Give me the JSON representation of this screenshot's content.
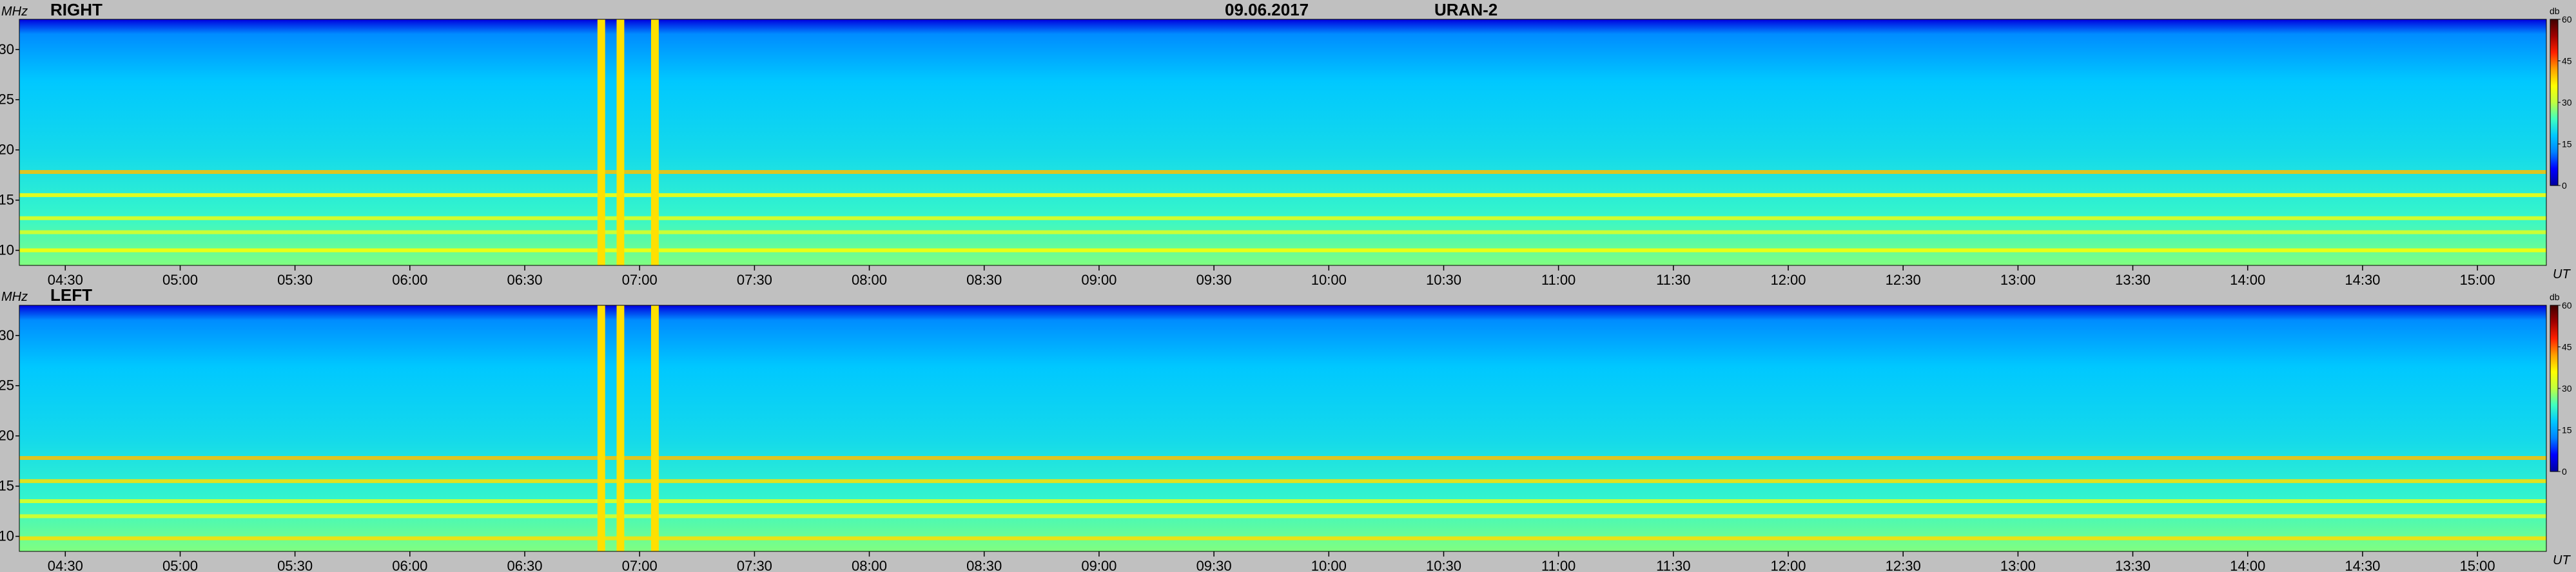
{
  "header": {
    "date": "09.06.2017",
    "instrument": "URAN-2"
  },
  "units": {
    "y": "MHz",
    "x": "UT",
    "colorbar": "db"
  },
  "colors": {
    "background": "#c0c0c0",
    "colormap": [
      "#0000a0",
      "#0000ff",
      "#0080ff",
      "#00c8ff",
      "#40ffc0",
      "#c0ff40",
      "#ffff00",
      "#ffa000",
      "#ff2000",
      "#a00000",
      "#400000"
    ]
  },
  "chart_data": {
    "type": "heatmap",
    "title": "09.06.2017 URAN-2",
    "time_range_ut": [
      "04:18",
      "15:18"
    ],
    "frequency_range_mhz": [
      8.5,
      33
    ],
    "x_ticks": [
      "04:30",
      "05:00",
      "05:30",
      "06:00",
      "06:30",
      "07:00",
      "07:30",
      "08:00",
      "08:30",
      "09:00",
      "09:30",
      "10:00",
      "10:30",
      "11:00",
      "11:30",
      "12:00",
      "12:30",
      "13:00",
      "13:30",
      "14:00",
      "14:30",
      "15:00"
    ],
    "y_ticks": [
      10,
      15,
      20,
      25,
      30
    ],
    "colorbar": {
      "min": 0,
      "max": 60,
      "ticks": [
        0,
        15,
        30,
        45,
        60
      ],
      "label": "db"
    },
    "panels": [
      {
        "name": "RIGHT",
        "background_level_db": 18,
        "interference_bursts_ut": [
          [
            "06:49",
            "06:51"
          ],
          [
            "06:54",
            "06:56"
          ],
          [
            "07:03",
            "07:05"
          ]
        ],
        "bright_bands_mhz": [
          {
            "freq": 17.8,
            "level_db": 40
          },
          {
            "freq": 15.5,
            "level_db": 36
          },
          {
            "freq": 13.2,
            "level_db": 34
          },
          {
            "freq": 11.8,
            "level_db": 33
          },
          {
            "freq": 10.0,
            "level_db": 36
          }
        ]
      },
      {
        "name": "LEFT",
        "background_level_db": 18,
        "interference_bursts_ut": [
          [
            "06:49",
            "06:51"
          ],
          [
            "06:54",
            "06:56"
          ],
          [
            "07:03",
            "07:05"
          ]
        ],
        "bright_bands_mhz": [
          {
            "freq": 17.8,
            "level_db": 40
          },
          {
            "freq": 15.5,
            "level_db": 38
          },
          {
            "freq": 13.5,
            "level_db": 34
          },
          {
            "freq": 12.0,
            "level_db": 33
          },
          {
            "freq": 9.8,
            "level_db": 38
          }
        ]
      }
    ]
  }
}
